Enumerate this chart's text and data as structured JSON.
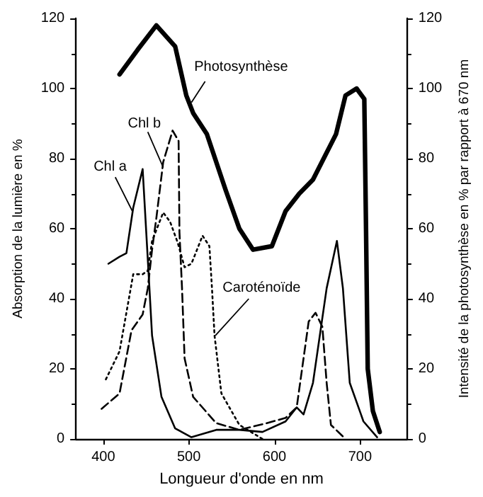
{
  "chart_data": {
    "type": "line",
    "xlabel": "Longueur d'onde en nm",
    "ylabel": "Absorption de la lumière en %",
    "y2label": "Intensité de la photosynthèse en % par rapport à 670 nm",
    "xlim": [
      368,
      755
    ],
    "xticks": [
      400,
      500,
      600,
      700
    ],
    "ylim": [
      0,
      120
    ],
    "yticks": [
      0,
      20,
      40,
      60,
      80,
      100,
      120
    ],
    "y2lim": [
      0,
      120
    ],
    "y2ticks": [
      0,
      20,
      40,
      60,
      80,
      100,
      120
    ],
    "grid": false,
    "legend": false,
    "marker": "none",
    "series": [
      {
        "name": "Photosynthèse",
        "color": "#000000",
        "axis": "y2",
        "line_style": "solid",
        "x": [
          419,
          440,
          462,
          484,
          497,
          505,
          521,
          543,
          559,
          575,
          597,
          613,
          629,
          645,
          672,
          683,
          696,
          705,
          707,
          709,
          715,
          723
        ],
        "values": [
          104,
          111,
          118,
          112,
          98,
          93,
          87,
          71,
          60,
          54,
          55,
          65,
          70,
          74,
          87,
          98,
          100,
          97,
          60,
          20,
          8,
          2
        ]
      },
      {
        "name": "Chl a",
        "color": "#000000",
        "line_style": "solid",
        "x": [
          406,
          419,
          427,
          435,
          446,
          453,
          457,
          468,
          484,
          503,
          532,
          559,
          586,
          613,
          626,
          634,
          645,
          661,
          673,
          680,
          688,
          704,
          720
        ],
        "values": [
          50,
          52,
          53,
          66,
          77,
          47,
          29.5,
          12,
          3,
          0.5,
          2.6,
          2.6,
          2,
          5,
          9,
          7,
          16,
          43,
          56.5,
          43,
          16,
          5,
          0.5
        ]
      },
      {
        "name": "Chl b",
        "color": "#000000",
        "line_style": "dashed",
        "x": [
          398,
          419,
          433,
          446,
          452,
          457,
          462,
          470,
          481,
          488,
          489,
          492,
          495,
          505,
          532,
          559,
          591,
          613,
          626,
          634,
          640,
          648,
          656,
          661,
          666,
          683
        ],
        "values": [
          8.6,
          13,
          31,
          35.5,
          43,
          54,
          63,
          79,
          88,
          85,
          59,
          43,
          23,
          12,
          4.5,
          2.6,
          4.5,
          6,
          9,
          23,
          33.5,
          36,
          32,
          16,
          4,
          0
        ]
      },
      {
        "name": "Caroténoïde",
        "color": "#000000",
        "line_style": "dotted",
        "x": [
          403,
          419,
          435,
          446,
          452,
          457,
          470,
          478,
          487,
          495,
          503,
          516,
          524,
          527,
          530,
          538,
          559,
          586
        ],
        "values": [
          17,
          25,
          47,
          47,
          48,
          56.5,
          64.6,
          62,
          56,
          49,
          50,
          58,
          55,
          43,
          29.5,
          13,
          4,
          0
        ]
      }
    ]
  }
}
